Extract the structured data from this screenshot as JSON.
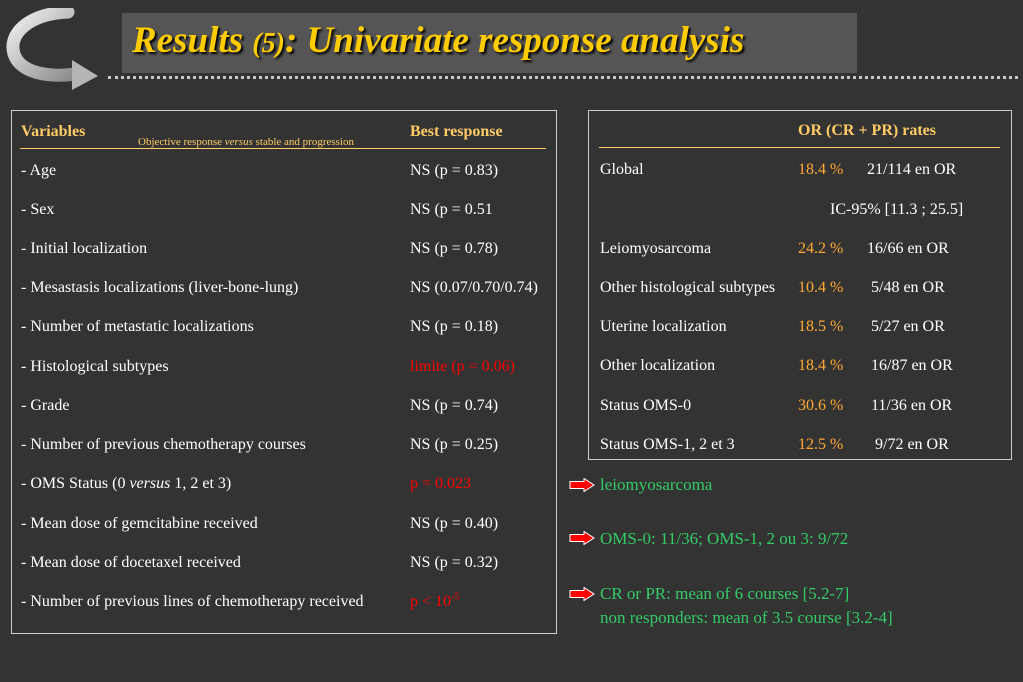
{
  "slide": {
    "title_pre": "Results ",
    "title_paren": "(5)",
    "title_post": ": Univariate response analysis",
    "colors": {
      "background": "#333333",
      "title": "#ffcc00",
      "header": "#ffcc66",
      "highlight_red": "#ff0000",
      "rate_orange": "#ffaa33",
      "note_green": "#33cc66"
    },
    "icons": {
      "corner": "curved-arrow-icon",
      "bullet": "red-right-arrow-icon"
    }
  },
  "left_table": {
    "col_variables": "Variables",
    "subheader_pre": "Objective response ",
    "subheader_em": "versus",
    "subheader_post": " stable and progression",
    "col_best": "Best response",
    "rows": [
      {
        "variable": "- Age",
        "response": "NS (p = 0.83)"
      },
      {
        "variable": "- Sex",
        "response": "NS (p = 0.51"
      },
      {
        "variable": "- Initial localization",
        "response": "NS (p = 0.78)"
      },
      {
        "variable": "- Mesastasis localizations (liver-bone-lung)",
        "response": "NS (0.07/0.70/0.74)"
      },
      {
        "variable": "- Number of metastatic localizations",
        "response": "NS (p = 0.18)"
      },
      {
        "variable": "- Histological subtypes",
        "response": "limite (p = 0.06)"
      },
      {
        "variable": "- Grade",
        "response": "NS (p = 0.74)"
      },
      {
        "variable": "- Number of previous chemotherapy courses",
        "response": "NS (p = 0.25)"
      },
      {
        "variable_pre": "- OMS Status (0 ",
        "variable_em": "versus",
        "variable_post": " 1, 2 et 3)",
        "response": "p = 0.023"
      },
      {
        "variable": "- Mean dose of gemcitabine received",
        "response": "NS (p = 0.40)"
      },
      {
        "variable": "- Mean dose of docetaxel received",
        "response": "NS (p = 0.32)"
      },
      {
        "variable": "- Number of previous lines of chemotherapy received",
        "response_base": "p < 10",
        "response_exp": "-5"
      }
    ]
  },
  "right_table": {
    "header": "OR (CR + PR) rates",
    "ci_note": "IC-95% [11.3 ; 25.5]",
    "rows": [
      {
        "label": "Global",
        "rate": "18.4 %",
        "count": "21/114 en OR"
      },
      {
        "label": "Leiomyosarcoma",
        "rate": "24.2 %",
        "count": "16/66 en OR"
      },
      {
        "label": "Other histological subtypes",
        "rate": "10.4 %",
        "count": "5/48 en OR"
      },
      {
        "label": "Uterine localization",
        "rate": "18.5 %",
        "count": "5/27 en OR"
      },
      {
        "label": "Other localization",
        "rate": "18.4 %",
        "count": "16/87 en OR"
      },
      {
        "label": "Status OMS-0",
        "rate": "30.6 %",
        "count": "11/36 en OR"
      },
      {
        "label": "Status OMS-1, 2 et 3",
        "rate": "12.5 %",
        "count": "9/72 en OR"
      }
    ]
  },
  "notes": {
    "n1": "leiomyosarcoma",
    "n2": "OMS-0: 11/36; OMS-1, 2 ou 3: 9/72",
    "n3_line1": "CR or PR: mean of 6 courses [5.2-7]",
    "n3_line2": "non responders: mean of 3.5 course [3.2-4]"
  }
}
